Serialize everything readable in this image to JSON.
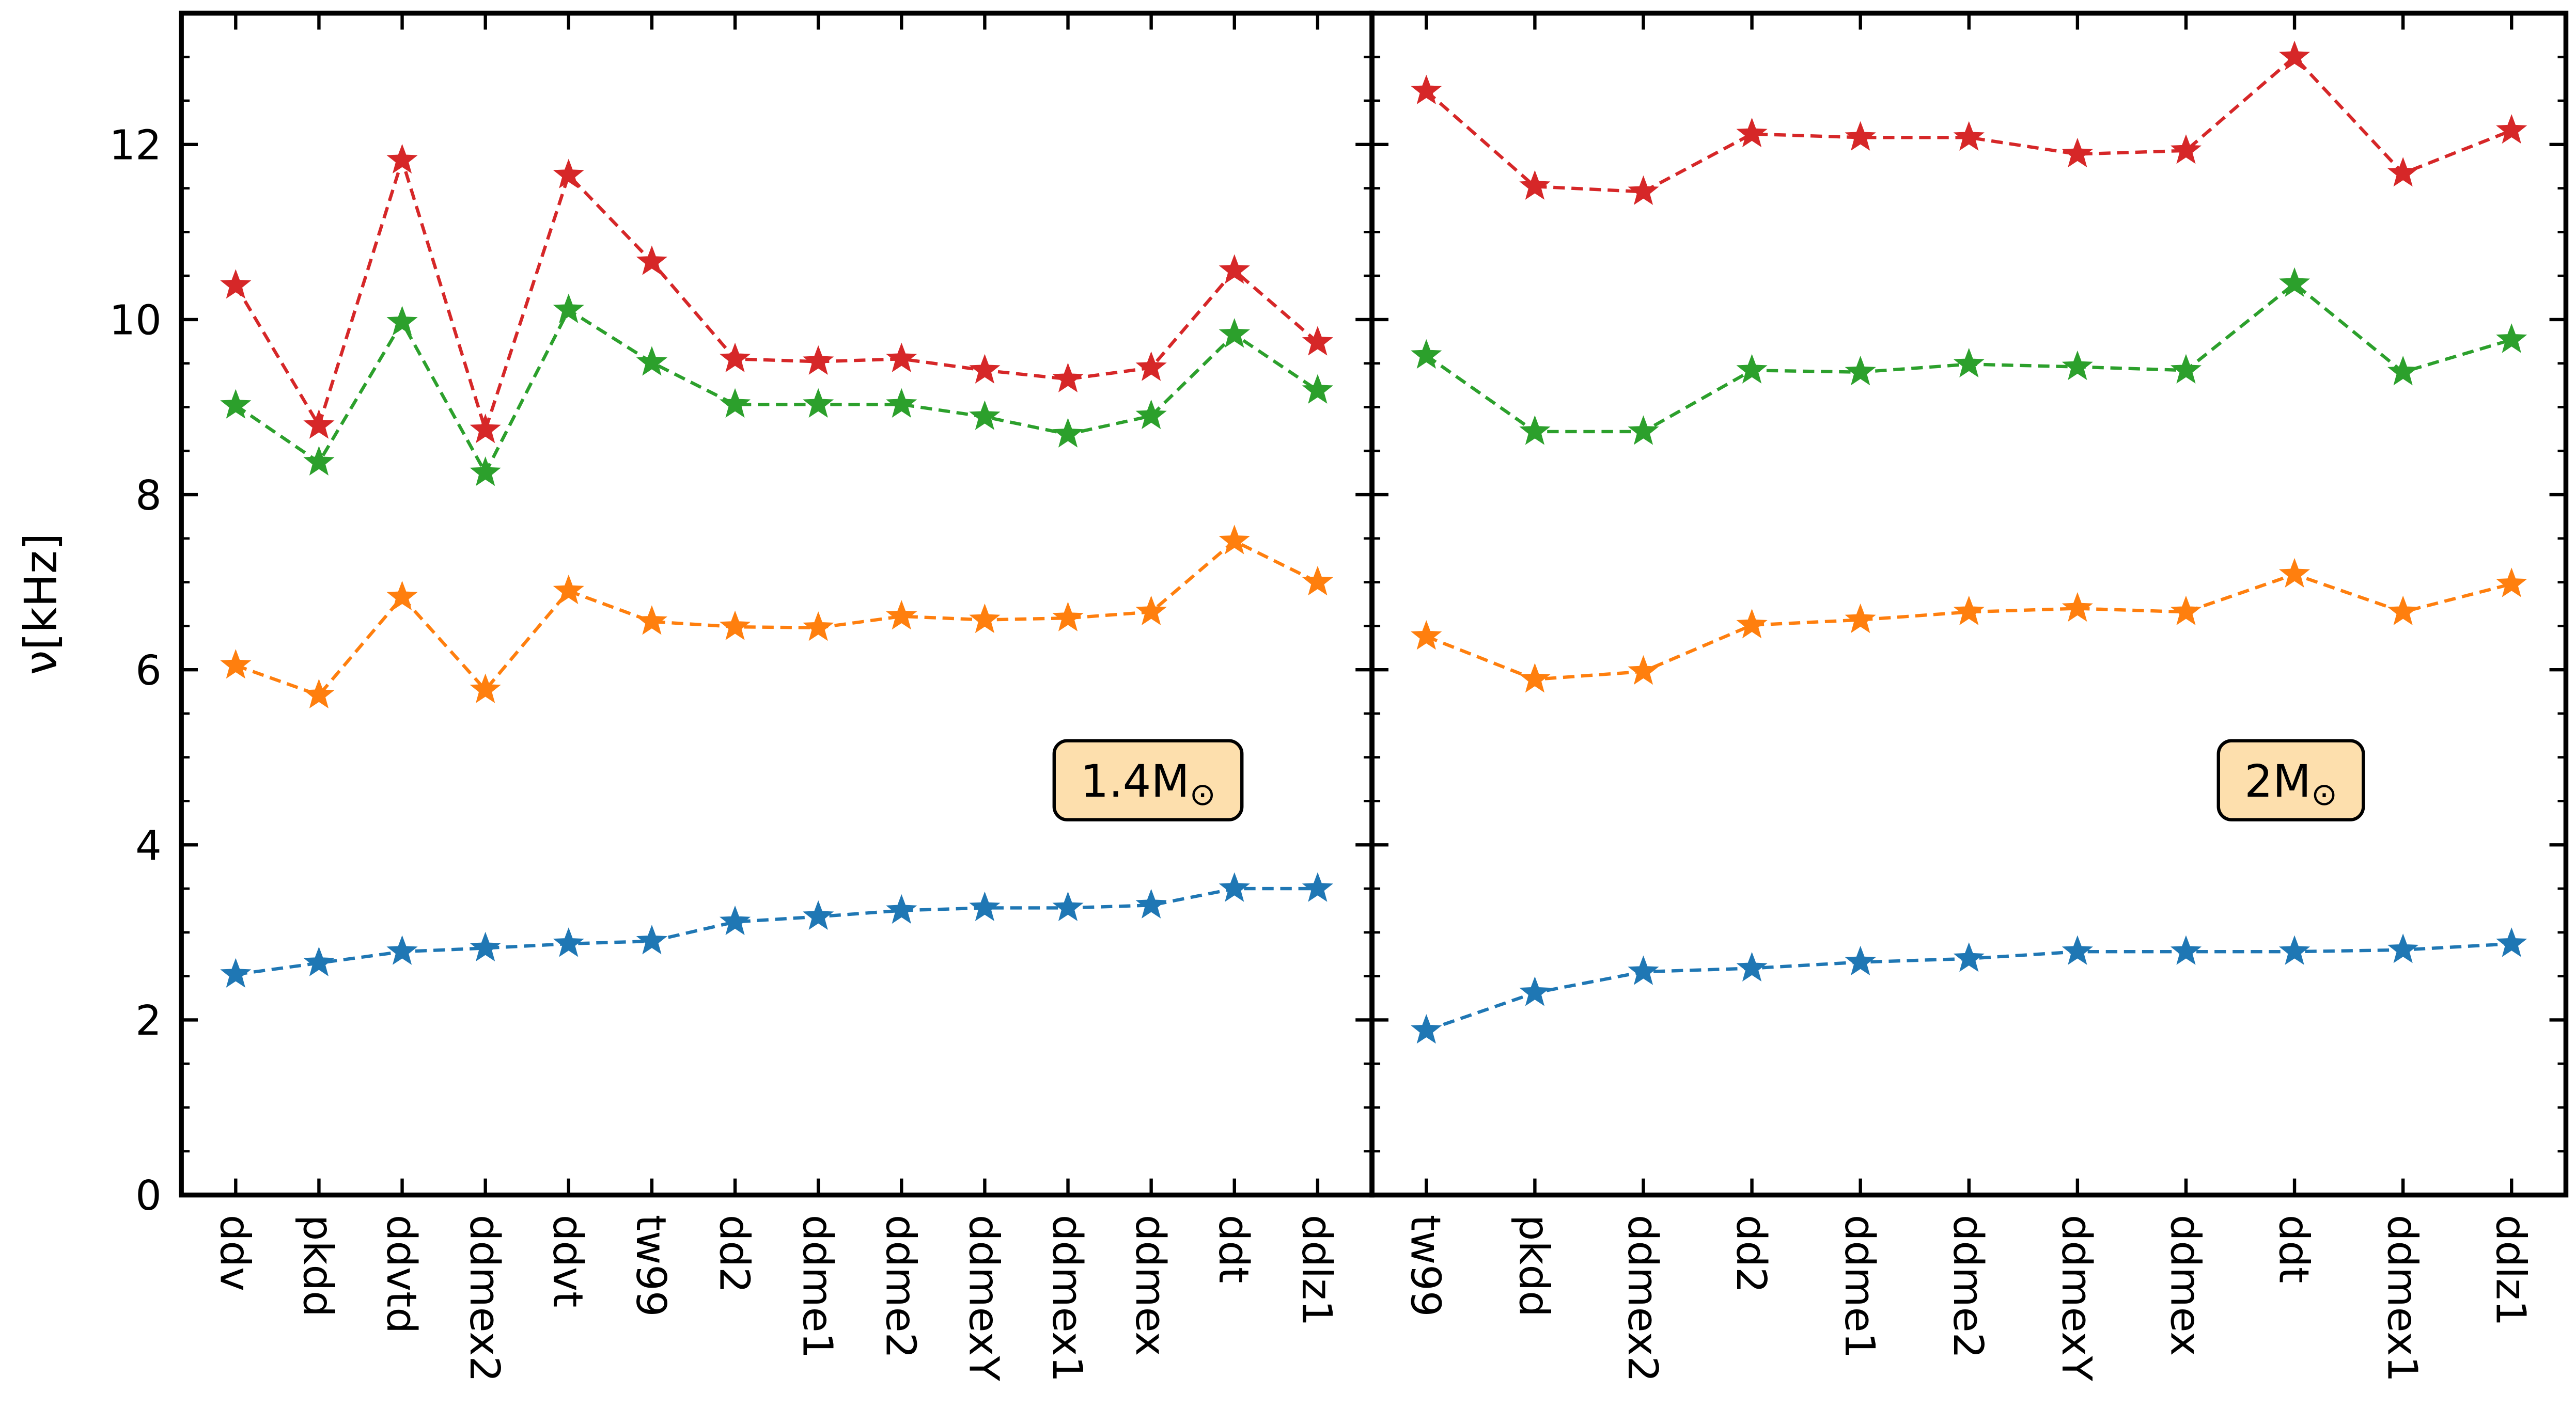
{
  "chart_data": {
    "type": "line",
    "ylabel": "ν[kHz]",
    "ylim": [
      0,
      13.5
    ],
    "yticks": [
      0,
      2,
      4,
      6,
      8,
      10,
      12
    ],
    "colors": [
      "#1f77b4",
      "#ff7f0e",
      "#2ca02c",
      "#d62728"
    ],
    "marker": "star",
    "linestyle": "dashed",
    "panels": [
      {
        "annotation": "1.4M",
        "annotation_symbol": "⊙",
        "categories": [
          "ddv",
          "pkdd",
          "ddvtd",
          "ddmex2",
          "ddvt",
          "tw99",
          "dd2",
          "ddme1",
          "ddme2",
          "ddmexY",
          "ddmex1",
          "ddmex",
          "ddt",
          "ddlz1"
        ],
        "series": [
          {
            "name": "blue",
            "values": [
              2.52,
              2.65,
              2.78,
              2.82,
              2.87,
              2.9,
              3.12,
              3.18,
              3.25,
              3.28,
              3.28,
              3.31,
              3.5,
              3.5
            ]
          },
          {
            "name": "orange",
            "values": [
              6.05,
              5.71,
              6.83,
              5.77,
              6.9,
              6.55,
              6.49,
              6.48,
              6.61,
              6.57,
              6.59,
              6.66,
              7.47,
              7.0
            ]
          },
          {
            "name": "green",
            "values": [
              9.02,
              8.37,
              9.97,
              8.25,
              10.11,
              9.51,
              9.03,
              9.03,
              9.03,
              8.89,
              8.69,
              8.9,
              9.83,
              9.19
            ]
          },
          {
            "name": "red",
            "values": [
              10.39,
              8.79,
              11.82,
              8.74,
              11.65,
              10.66,
              9.55,
              9.52,
              9.55,
              9.42,
              9.32,
              9.45,
              10.56,
              9.74
            ]
          }
        ]
      },
      {
        "annotation": "2M",
        "annotation_symbol": "⊙",
        "categories": [
          "tw99",
          "pkdd",
          "ddmex2",
          "dd2",
          "ddme1",
          "ddme2",
          "ddmexY",
          "ddmex",
          "ddt",
          "ddmex1",
          "ddlz1"
        ],
        "series": [
          {
            "name": "blue",
            "values": [
              1.88,
              2.31,
              2.55,
              2.59,
              2.66,
              2.7,
              2.78,
              2.78,
              2.78,
              2.8,
              2.87
            ]
          },
          {
            "name": "orange",
            "values": [
              6.38,
              5.89,
              5.98,
              6.51,
              6.57,
              6.66,
              6.7,
              6.66,
              7.09,
              6.66,
              6.98
            ]
          },
          {
            "name": "green",
            "values": [
              9.59,
              8.72,
              8.72,
              9.42,
              9.4,
              9.49,
              9.46,
              9.42,
              10.41,
              9.4,
              9.77
            ]
          },
          {
            "name": "red",
            "values": [
              12.61,
              11.52,
              11.46,
              12.12,
              12.08,
              12.08,
              11.89,
              11.93,
              13.0,
              11.67,
              12.16
            ]
          }
        ]
      }
    ]
  }
}
